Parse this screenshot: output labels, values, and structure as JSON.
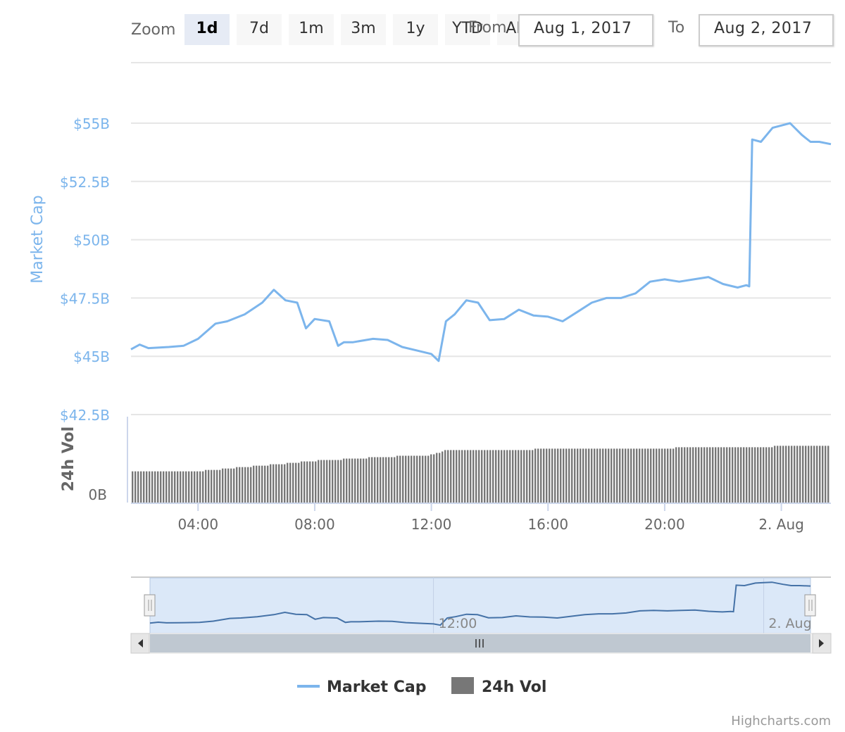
{
  "zoom": {
    "label": "Zoom",
    "buttons": [
      {
        "label": "1d",
        "active": true
      },
      {
        "label": "7d",
        "active": false
      },
      {
        "label": "1m",
        "active": false
      },
      {
        "label": "3m",
        "active": false
      },
      {
        "label": "1y",
        "active": false
      },
      {
        "label": "YTD",
        "active": false
      },
      {
        "label": "ALL",
        "active": false
      }
    ]
  },
  "range": {
    "from_label": "From",
    "from_value": "Aug 1, 2017",
    "to_label": "To",
    "to_value": "Aug 2, 2017"
  },
  "legend": {
    "market_cap": "Market Cap",
    "volume": "24h Vol"
  },
  "credits": "Highcharts.com",
  "colors": {
    "market_cap": "#7cb5ec",
    "volume": "#777777",
    "axis_title_market_cap": "#7cb5ec",
    "navigator_mask": "#dbe8f8",
    "button_active": "#e6ebf5",
    "button_idle": "#f7f7f7"
  },
  "chart_data": {
    "type": "line",
    "x_range": [
      "Aug 1, 2017 01:40",
      "Aug 2, 2017 01:40"
    ],
    "x_ticks": [
      "04:00",
      "08:00",
      "12:00",
      "16:00",
      "20:00",
      "2. Aug"
    ],
    "x_tick_hours": [
      4,
      8,
      12,
      16,
      20,
      24
    ],
    "market_cap": {
      "axis_title": "Market Cap",
      "ticks": [
        "$42.5B",
        "$45B",
        "$47.5B",
        "$50B",
        "$52.5B",
        "$55B"
      ],
      "tick_values": [
        42.5,
        45,
        47.5,
        50,
        52.5,
        55
      ],
      "ylim": [
        42.5,
        55
      ],
      "unit": "USD billions",
      "series": {
        "name": "Market Cap",
        "hours": [
          1.7,
          2.0,
          2.3,
          3.0,
          3.5,
          4.0,
          4.6,
          5.0,
          5.6,
          6.2,
          6.6,
          7.0,
          7.4,
          7.7,
          8.0,
          8.5,
          8.8,
          9.0,
          9.3,
          10.0,
          10.5,
          11.0,
          11.5,
          12.0,
          12.25,
          12.5,
          12.8,
          13.2,
          13.6,
          14.0,
          14.5,
          15.0,
          15.5,
          16.0,
          16.5,
          17.0,
          17.5,
          18.0,
          18.5,
          19.0,
          19.5,
          20.0,
          20.5,
          21.0,
          21.5,
          22.0,
          22.5,
          22.8,
          22.9,
          23.0,
          23.3,
          23.7,
          24.0,
          24.3,
          24.7,
          25.0,
          25.3,
          25.7
        ],
        "values": [
          45.3,
          45.5,
          45.35,
          45.4,
          45.45,
          45.75,
          46.4,
          46.5,
          46.8,
          47.3,
          47.85,
          47.4,
          47.3,
          46.2,
          46.6,
          46.5,
          45.45,
          45.6,
          45.6,
          45.75,
          45.7,
          45.4,
          45.25,
          45.1,
          44.8,
          46.5,
          46.8,
          47.4,
          47.3,
          46.55,
          46.6,
          47.0,
          46.75,
          46.7,
          46.5,
          46.9,
          47.3,
          47.5,
          47.5,
          47.7,
          48.2,
          48.3,
          48.2,
          48.3,
          48.4,
          48.1,
          47.95,
          48.05,
          48.0,
          54.3,
          54.2,
          54.8,
          54.9,
          55.0,
          54.5,
          54.2,
          54.2,
          54.1
        ]
      }
    },
    "volume": {
      "axis_title": "24h Vol",
      "ticks": [
        "0B"
      ],
      "series": {
        "name": "24h Vol",
        "type": "column",
        "relative_levels_hours": [
          1.7,
          4.0,
          6.0,
          8.0,
          10.0,
          12.0,
          12.5,
          15.0,
          17.0,
          20.0,
          22.0,
          24.0,
          25.7
        ],
        "relative_levels": [
          0.36,
          0.37,
          0.43,
          0.49,
          0.53,
          0.56,
          0.62,
          0.62,
          0.64,
          0.64,
          0.65,
          0.66,
          0.66
        ]
      }
    },
    "navigator": {
      "x_ticks": [
        "12:00",
        "2. Aug"
      ]
    }
  }
}
